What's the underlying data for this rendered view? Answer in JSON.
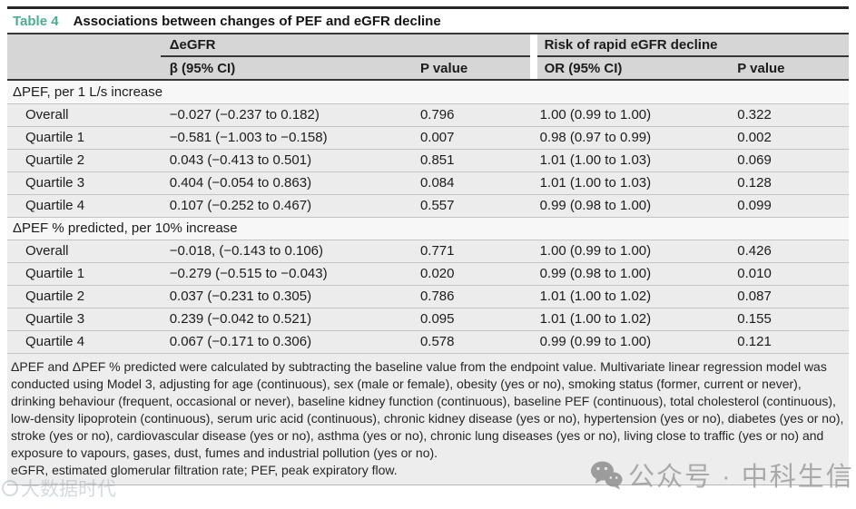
{
  "title": {
    "label": "Table 4",
    "text": "Associations between changes of PEF and eGFR decline"
  },
  "header": {
    "group1": "ΔeGFR",
    "group2": "Risk of rapid eGFR decline",
    "columns": [
      "β (95% CI)",
      "P value",
      "OR (95% CI)",
      "P value"
    ]
  },
  "table": {
    "sections": [
      {
        "header": "ΔPEF, per 1 L/s increase",
        "rows": [
          {
            "label": "Overall",
            "beta": "−0.027 (−0.237 to 0.182)",
            "p1": "0.796",
            "or": "1.00 (0.99 to 1.00)",
            "p2": "0.322"
          },
          {
            "label": "Quartile 1",
            "beta": "−0.581 (−1.003 to −0.158)",
            "p1": "0.007",
            "or": "0.98 (0.97 to 0.99)",
            "p2": "0.002"
          },
          {
            "label": "Quartile 2",
            "beta": "0.043 (−0.413 to 0.501)",
            "p1": "0.851",
            "or": "1.01 (1.00 to 1.03)",
            "p2": "0.069"
          },
          {
            "label": "Quartile 3",
            "beta": "0.404 (−0.054 to 0.863)",
            "p1": "0.084",
            "or": "1.01 (1.00 to 1.03)",
            "p2": "0.128"
          },
          {
            "label": "Quartile 4",
            "beta": "0.107 (−0.252 to 0.467)",
            "p1": "0.557",
            "or": "0.99 (0.98 to 1.00)",
            "p2": "0.099"
          }
        ]
      },
      {
        "header": "ΔPEF % predicted, per 10% increase",
        "rows": [
          {
            "label": "Overall",
            "beta": "−0.018, (−0.143 to 0.106)",
            "p1": "0.771",
            "or": "1.00 (0.99 to 1.00)",
            "p2": "0.426"
          },
          {
            "label": "Quartile 1",
            "beta": "−0.279 (−0.515 to −0.043)",
            "p1": "0.020",
            "or": "0.99 (0.98 to 1.00)",
            "p2": "0.010"
          },
          {
            "label": "Quartile 2",
            "beta": "0.037 (−0.231 to 0.305)",
            "p1": "0.786",
            "or": "1.01 (1.00 to 1.02)",
            "p2": "0.087"
          },
          {
            "label": "Quartile 3",
            "beta": "0.239 (−0.042 to 0.521)",
            "p1": "0.095",
            "or": "1.01 (1.00 to 1.02)",
            "p2": "0.155"
          },
          {
            "label": "Quartile 4",
            "beta": "0.067 (−0.171 to 0.306)",
            "p1": "0.578",
            "or": "0.99 (0.99 to 1.00)",
            "p2": "0.121"
          }
        ]
      }
    ]
  },
  "footnotes": {
    "methods": "ΔPEF and ΔPEF % predicted were calculated by subtracting the baseline value from the endpoint value. Multivariate linear regression model was conducted using Model 3, adjusting for age (continuous), sex (male or female), obesity (yes or no), smoking status (former, current or never), drinking behaviour (frequent, occasional or never), baseline kidney function (continuous), baseline PEF (continuous), total cholesterol (continuous), low-density lipoprotein (continuous), serum uric acid (continuous), chronic kidney disease (yes or no), hypertension (yes or no), diabetes (yes or no), stroke (yes or no), cardiovascular disease (yes or no), asthma (yes or no), chronic lung diseases (yes or no), living close to traffic (yes or no) and exposure to vapours, gases, dust, fumes and industrial pollution (yes or no).",
    "abbreviations": "eGFR, estimated glomerular filtration rate; PEF, peak expiratory flow."
  },
  "watermarks": {
    "left": "大数据时代",
    "right": "公众号 · 中科生信"
  },
  "colors": {
    "accent_teal": "#4aae8e",
    "header_bg": "#d6d6d6",
    "data_row_bg": "#ececec",
    "section_row_bg": "#f7f7f7",
    "rule_dark": "#363636",
    "rule_light": "#c3c3c3",
    "watermark_gray": "#9e9e9e"
  }
}
